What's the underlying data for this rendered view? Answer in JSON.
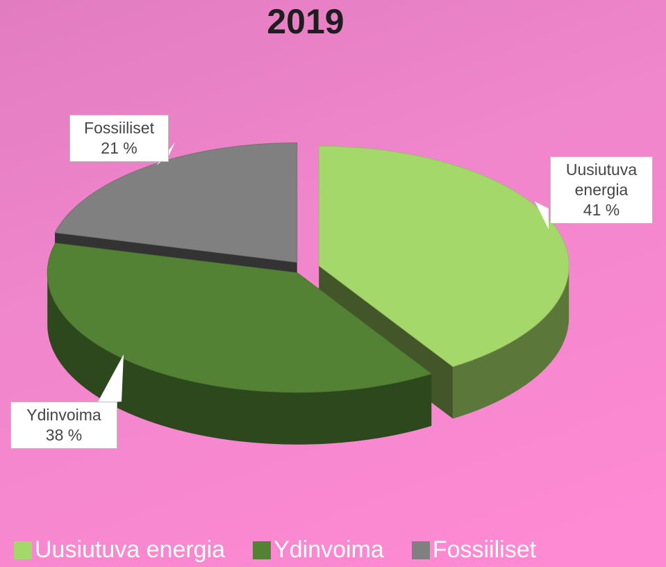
{
  "chart_data": {
    "type": "pie",
    "title": "2019",
    "categories": [
      "Uusiutuva energia",
      "Ydinvoima",
      "Fossiiliset"
    ],
    "values": [
      41,
      38,
      21
    ],
    "value_labels": [
      "41 %",
      "38 %",
      "21 %"
    ],
    "colors": [
      "#a5d86a",
      "#548235",
      "#808080"
    ],
    "legend": "bottom"
  }
}
